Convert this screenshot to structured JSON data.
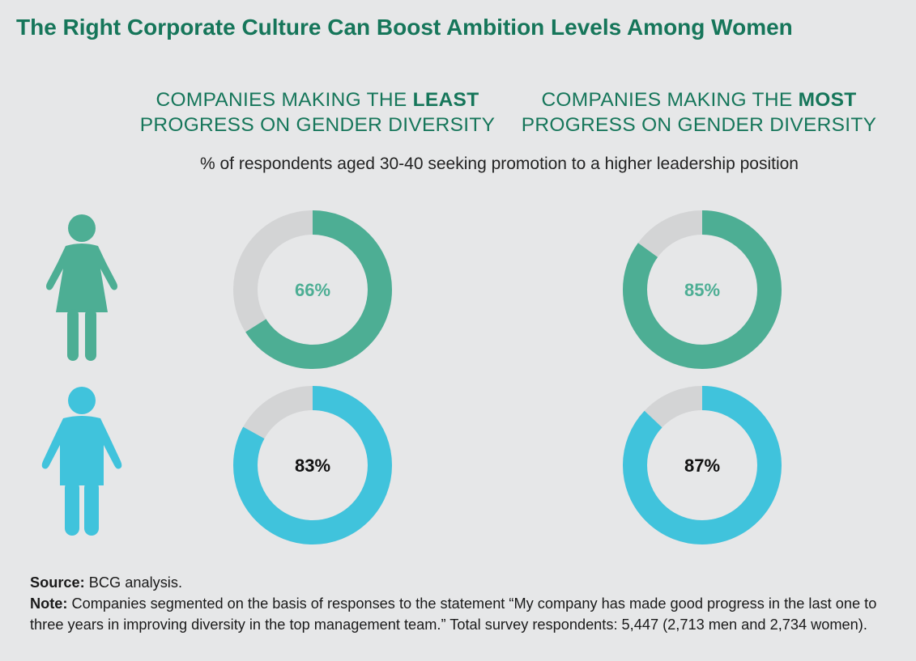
{
  "title": "The Right Corporate Culture Can Boost Ambition Levels Among Women",
  "columns": {
    "least": {
      "line1_prefix": "COMPANIES MAKING THE ",
      "line1_bold": "LEAST",
      "line2": "PROGRESS ON GENDER DIVERSITY"
    },
    "most": {
      "line1_prefix": "COMPANIES MAKING THE ",
      "line1_bold": "MOST",
      "line2": "PROGRESS ON GENDER DIVERSITY"
    }
  },
  "subtitle": "% of respondents aged 30-40 seeking promotion to a higher leadership position",
  "colors": {
    "women": "#4dae94",
    "men": "#40c3dc",
    "remainder": "#d3d4d5",
    "women_label": "#4dae94",
    "men_label": "#111111"
  },
  "icons": {
    "women": "woman-icon",
    "men": "man-icon"
  },
  "chart_data": {
    "type": "donut",
    "categories": [
      "Companies making the least progress on gender diversity",
      "Companies making the most progress on gender diversity"
    ],
    "series": [
      {
        "name": "Women",
        "values": [
          66,
          85
        ],
        "labels": [
          "66%",
          "85%"
        ]
      },
      {
        "name": "Men",
        "values": [
          83,
          87
        ],
        "labels": [
          "83%",
          "87%"
        ]
      }
    ],
    "max": 100
  },
  "footnotes": {
    "source_label": "Source:",
    "source_text": " BCG analysis.",
    "note_label": "Note:",
    "note_text": " Companies segmented on the basis of responses to the statement “My company has made good progress in the last one to three years in improving diversity in the top management team.” Total survey respondents: 5,447 (2,713 men and 2,734 women)."
  }
}
